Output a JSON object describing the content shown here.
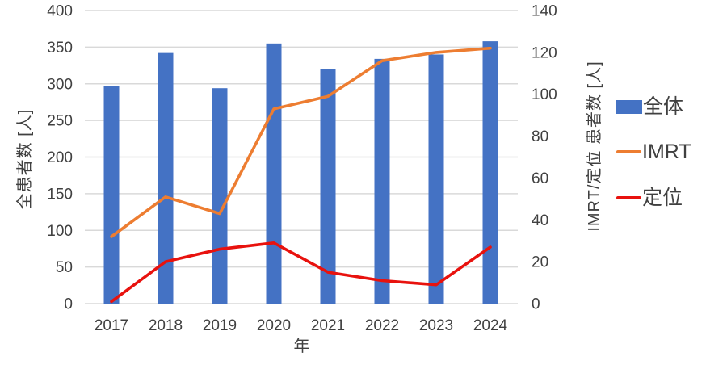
{
  "chart_data": {
    "type": "bar",
    "subtype": "combo-bar-line",
    "title": "",
    "categories": [
      "2017",
      "2018",
      "2019",
      "2020",
      "2021",
      "2022",
      "2023",
      "2024"
    ],
    "x_axis_title": "年",
    "left_axis": {
      "title": "全患者数 [人]",
      "min": 0,
      "max": 400,
      "ticks": [
        0,
        50,
        100,
        150,
        200,
        250,
        300,
        350,
        400
      ]
    },
    "right_axis": {
      "title": "IMRT/定位 患者数 [人]",
      "min": 0,
      "max": 140,
      "ticks": [
        0,
        20,
        40,
        60,
        80,
        100,
        120,
        140
      ]
    },
    "series": [
      {
        "name": "全体",
        "type": "bar",
        "axis": "left",
        "color": "#4472c4",
        "values": [
          297,
          342,
          294,
          355,
          320,
          334,
          340,
          358
        ]
      },
      {
        "name": "IMRT",
        "type": "line",
        "axis": "right",
        "color": "#ed7d31",
        "values": [
          32,
          51,
          43,
          93,
          99,
          116,
          120,
          122
        ]
      },
      {
        "name": "定位",
        "type": "line",
        "axis": "right",
        "color": "#e8120e",
        "values": [
          1,
          20,
          26,
          29,
          15,
          11,
          9,
          27
        ]
      }
    ],
    "legend_position": "right",
    "grid": true
  },
  "colors": {
    "gridline": "#d9d9d9",
    "tick_text": "#404040",
    "background": "#ffffff"
  }
}
